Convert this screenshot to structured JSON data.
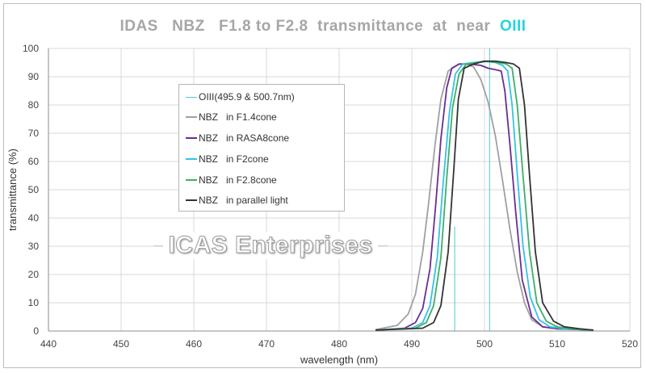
{
  "chart_data": {
    "type": "line",
    "title_parts": [
      "IDAS   NBZ   F1.8 to F2.8  transmittance  at  near  ",
      "OIII"
    ],
    "xlabel": "wavelength (nm)",
    "ylabel": "transmittance (%)",
    "xlim": [
      440,
      520
    ],
    "ylim": [
      0,
      100
    ],
    "xticks": [
      440,
      450,
      460,
      470,
      480,
      490,
      500,
      510,
      520
    ],
    "yticks": [
      0,
      10,
      20,
      30,
      40,
      50,
      60,
      70,
      80,
      90,
      100
    ],
    "grid": true,
    "legend_position": "left-center",
    "watermark": "ICAS Enterprises",
    "oiii_lines": {
      "label": "OIII(495.9 & 500.7nm)",
      "color": "#4fc9cf",
      "wavelengths": [
        495.9,
        500.7
      ],
      "heights": [
        37,
        100
      ]
    },
    "series": [
      {
        "name": "NBZ   in F1.4cone",
        "color": "#a0a0a0",
        "x": [
          485,
          488,
          489.5,
          490.5,
          491.5,
          492.3,
          493.2,
          494,
          495,
          496.5,
          497.5,
          498.5,
          499.5,
          500.5,
          501.5,
          502.5,
          503.5,
          504.5,
          505.5,
          506.5,
          508,
          510,
          515
        ],
        "y": [
          0.5,
          2,
          6,
          13,
          28,
          45,
          66,
          82,
          92,
          94.5,
          94.5,
          93.5,
          89,
          81,
          69,
          53,
          36,
          21,
          10,
          4,
          1.5,
          0.8,
          0.3
        ]
      },
      {
        "name": "NBZ   in RASA8cone",
        "color": "#6b2d8f",
        "x": [
          485,
          489,
          490.5,
          491.5,
          492.5,
          493.3,
          494,
          494.8,
          495.5,
          496.5,
          498,
          499.5,
          500.5,
          501.5,
          502.3,
          502.8,
          503.5,
          504.3,
          505.2,
          506.5,
          508,
          510,
          515
        ],
        "y": [
          0.3,
          1,
          3,
          8,
          22,
          45,
          68,
          86,
          93,
          94.5,
          94.5,
          94,
          93,
          92.5,
          92,
          85,
          66,
          42,
          18,
          5,
          1.5,
          0.8,
          0.3
        ]
      },
      {
        "name": "NBZ   in F2cone",
        "color": "#33c3e6",
        "x": [
          485,
          490,
          491.5,
          492.5,
          493.5,
          494.3,
          495.2,
          496,
          497,
          498.5,
          500,
          501.5,
          502.5,
          503.2,
          503.8,
          504.5,
          505.3,
          506.3,
          507.5,
          509,
          511,
          515
        ],
        "y": [
          0.3,
          1,
          3,
          9,
          26,
          52,
          78,
          91,
          94.5,
          95,
          95.5,
          95,
          94,
          92,
          80,
          56,
          30,
          12,
          4,
          1.5,
          0.8,
          0.3
        ]
      },
      {
        "name": "NBZ   in F2.8cone",
        "color": "#3fae66",
        "x": [
          485,
          490.5,
          492,
          493,
          494,
          494.8,
          495.6,
          496.5,
          497.5,
          499,
          500.5,
          502,
          503,
          503.8,
          504.5,
          505.3,
          506.2,
          507.2,
          508.5,
          510,
          512,
          515
        ],
        "y": [
          0.3,
          1,
          3,
          9,
          26,
          54,
          79,
          91,
          94.5,
          95,
          95.5,
          95,
          94.5,
          93,
          80,
          55,
          28,
          10,
          3.5,
          1.5,
          0.8,
          0.3
        ]
      },
      {
        "name": "NBZ   in parallel light",
        "color": "#333333",
        "x": [
          485,
          491.5,
          493,
          494,
          495,
          495.8,
          496.4,
          497.2,
          498.5,
          500,
          501.5,
          503,
          504,
          504.8,
          505.5,
          506.2,
          507,
          508,
          509.5,
          511,
          513,
          515
        ],
        "y": [
          0.3,
          1,
          3,
          9,
          28,
          58,
          82,
          93,
          94.5,
          95.5,
          95.5,
          95,
          94.5,
          93,
          80,
          55,
          28,
          10,
          3.5,
          1.5,
          0.8,
          0.3
        ]
      }
    ]
  }
}
